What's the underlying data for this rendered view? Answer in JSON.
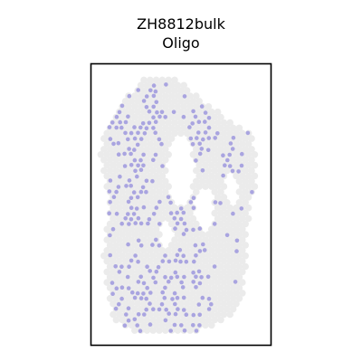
{
  "chart_data": {
    "type": "scatter",
    "title_lines": [
      "ZH8812bulk",
      "Oligo"
    ],
    "xlabel": "",
    "ylabel": "",
    "axes_ticks": false,
    "grid": false,
    "legend": "none",
    "colors": {
      "tissue": "#ebebeb",
      "highlight": "#a9a4e0",
      "frame": "#000000"
    },
    "series": [
      {
        "role": "background-spots",
        "color_key": "tissue",
        "region_outline_x_y": [
          [
            0.29,
            0.05
          ],
          [
            0.5,
            0.06
          ],
          [
            0.6,
            0.12
          ],
          [
            0.72,
            0.18
          ],
          [
            0.82,
            0.22
          ],
          [
            0.9,
            0.26
          ],
          [
            0.92,
            0.4
          ],
          [
            0.88,
            0.52
          ],
          [
            0.86,
            0.7
          ],
          [
            0.84,
            0.85
          ],
          [
            0.72,
            0.92
          ],
          [
            0.52,
            0.96
          ],
          [
            0.26,
            0.96
          ],
          [
            0.12,
            0.9
          ],
          [
            0.07,
            0.7
          ],
          [
            0.1,
            0.5
          ],
          [
            0.05,
            0.3
          ],
          [
            0.1,
            0.22
          ],
          [
            0.16,
            0.15
          ]
        ],
        "holes_x_y_radius": [
          [
            0.5,
            0.38,
            0.075
          ],
          [
            0.63,
            0.52,
            0.05
          ],
          [
            0.78,
            0.44,
            0.035
          ],
          [
            0.42,
            0.6,
            0.03
          ]
        ]
      },
      {
        "role": "highlighted-spots",
        "color_key": "highlight",
        "dense_clusters_x_y_radius_share": [
          [
            0.22,
            0.26,
            0.12,
            0.28
          ],
          [
            0.23,
            0.38,
            0.1,
            0.2
          ],
          [
            0.35,
            0.2,
            0.08,
            0.1
          ],
          [
            0.6,
            0.24,
            0.07,
            0.08
          ],
          [
            0.78,
            0.35,
            0.07,
            0.08
          ]
        ],
        "sparse_region_x_y_w_h": [
          0.1,
          0.45,
          0.6,
          0.5
        ],
        "approx_count": 430
      }
    ]
  }
}
